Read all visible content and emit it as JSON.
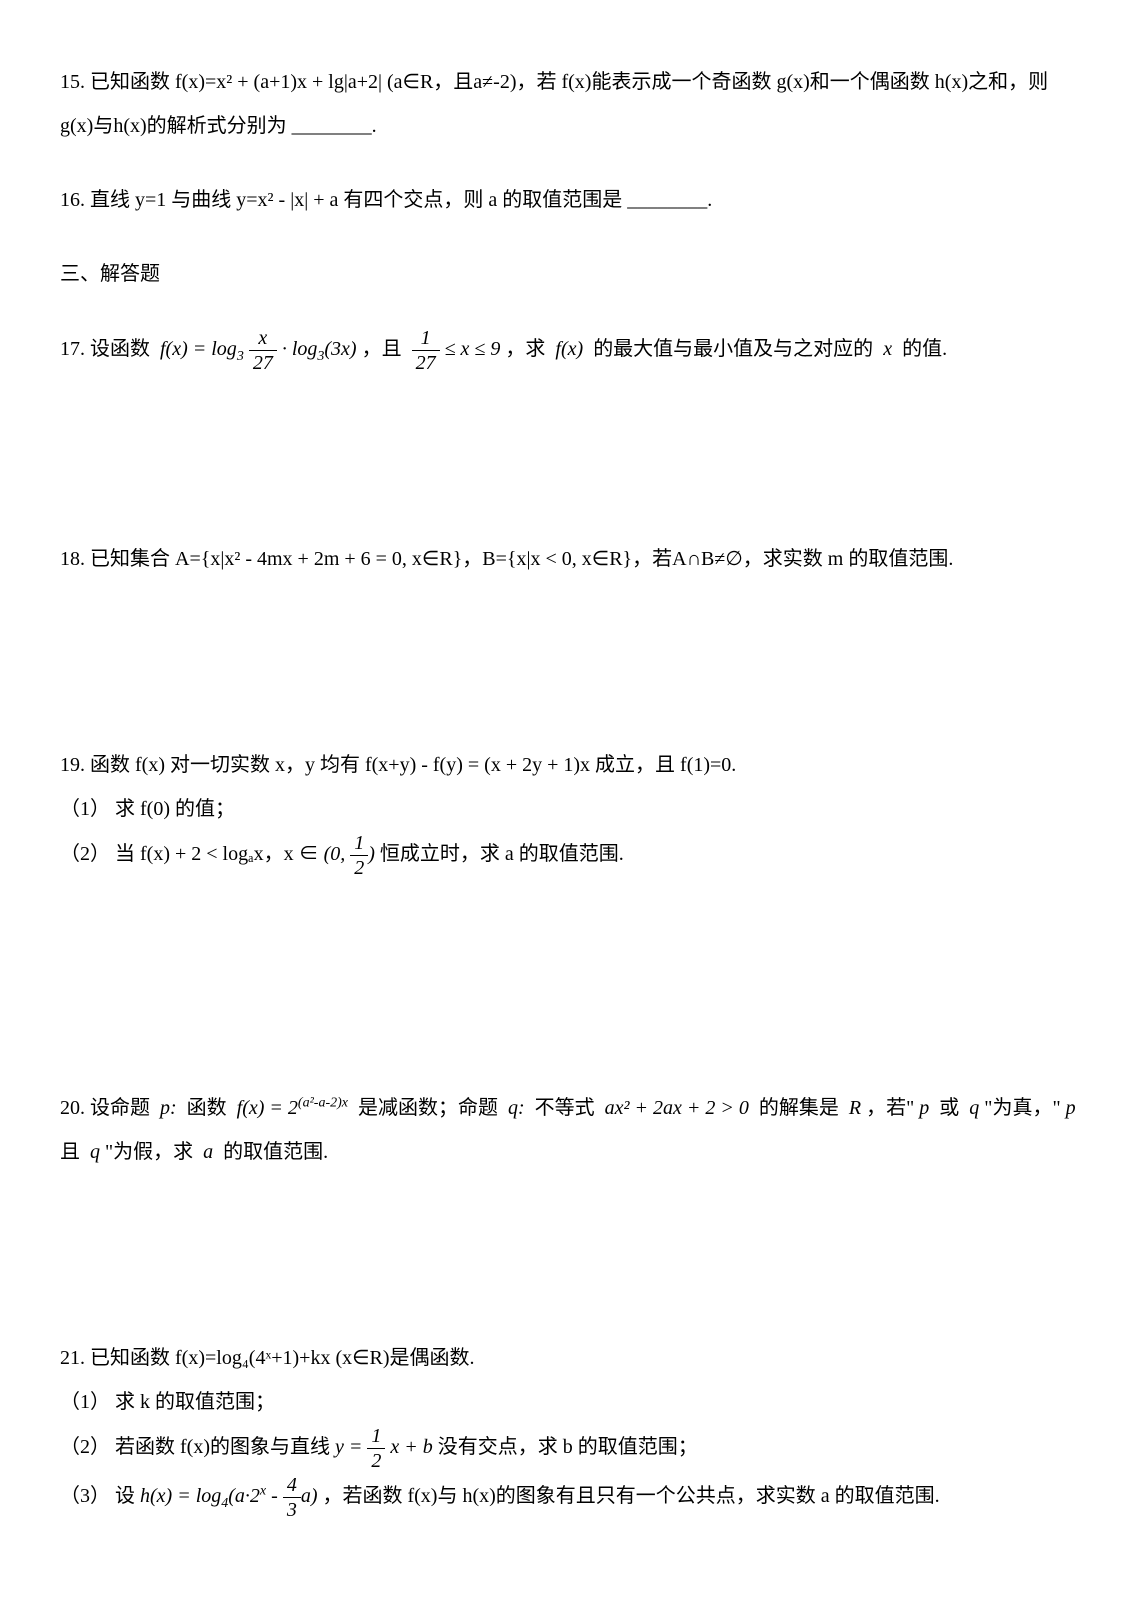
{
  "problems": {
    "p15": {
      "num_prefix": "15. ",
      "text_1": "已知函数 f(x)=x² + (a+1)x + lg|a+2| (a∈R，且a≠-2)，若 f(x)能表示成一个奇函数 g(x)和一个偶函数 h(x)之和，则 g(x)与h(x)的解析式分别为",
      "blank": "________."
    },
    "p16": {
      "num_prefix": "16. ",
      "text_1": "直线 y=1 与曲线 y=x² - |x| + a 有四个交点，则 a 的取值范围是",
      "blank": "________."
    },
    "section_title": "三、解答题",
    "p17": {
      "num_prefix": "17. ",
      "text_1": "设函数",
      "text_2": "，且",
      "text_3": "，求",
      "text_4": "的最大值与最小值及与之对应的",
      "text_5": "的值."
    },
    "p18": {
      "num_prefix": "18. ",
      "text_1": "已知集合 A={x|x² - 4mx + 2m + 6 = 0, x∈R}，B={x|x < 0, x∈R}，若A∩B≠∅，求实数 m 的取值范围."
    },
    "p19": {
      "num_prefix": "19. ",
      "text_1": "函数 f(x) 对一切实数 x，y 均有 f(x+y) - f(y) = (x + 2y + 1)x 成立，且 f(1)=0.",
      "sub1_prefix": "（1）",
      "sub1_text": "求 f(0) 的值；",
      "sub2_prefix": "（2）",
      "sub2_text_1": "当 f(x) + 2 < logₐx，x ∈ ",
      "sub2_text_2": "恒成立时，求 a 的取值范围."
    },
    "p20": {
      "num_prefix": "20. ",
      "text_1": "设命题",
      "text_2": "函数",
      "text_3": "是减函数；命题",
      "text_4": "不等式",
      "text_5": "的解集是",
      "text_6": "，若\"",
      "text_7": "或",
      "text_8": "\"为真，\"",
      "text_9": "且",
      "text_10": "\"为假，求",
      "text_11": "的取值范围."
    },
    "p21": {
      "num_prefix": "21. ",
      "text_1": "已知函数 f(x)=log₄(4ˣ+1)+kx (x∈R)是偶函数.",
      "sub1_prefix": "（1）",
      "sub1_text": "求 k 的取值范围；",
      "sub2_prefix": "（2）",
      "sub2_text_1": "若函数 f(x)的图象与直线 ",
      "sub2_text_2": " 没有交点，求 b 的取值范围；",
      "sub3_prefix": "（3）",
      "sub3_text_1": "设 ",
      "sub3_text_2": "，若函数 f(x)与 h(x)的图象有且只有一个公共点，求实数 a 的取值范围."
    }
  },
  "font_size": 20,
  "text_color": "#000000",
  "background_color": "#ffffff"
}
